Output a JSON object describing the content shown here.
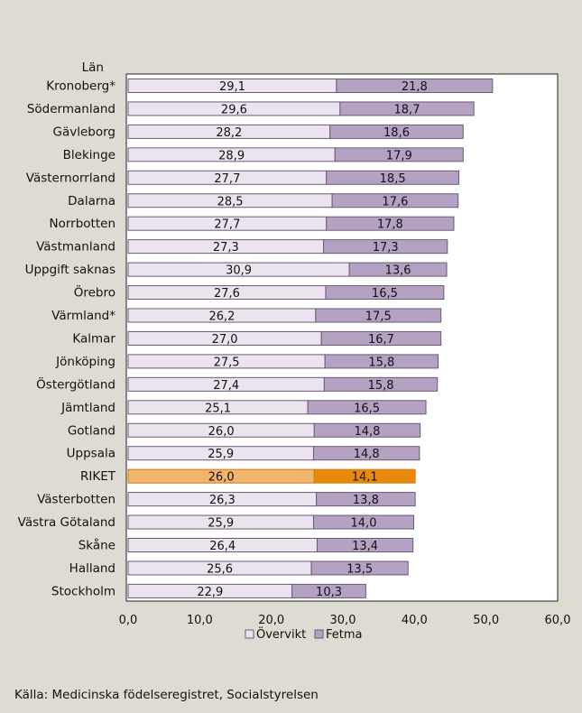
{
  "chart_data": {
    "type": "bar",
    "orientation": "horizontal",
    "stacked": true,
    "y_title": "Län",
    "categories": [
      "Kronoberg*",
      "Södermanland",
      "Gävleborg",
      "Blekinge",
      "Västernorrland",
      "Dalarna",
      "Norrbotten",
      "Västmanland",
      "Uppgift saknas",
      "Örebro",
      "Värmland*",
      "Kalmar",
      "Jönköping",
      "Östergötland",
      "Jämtland",
      "Gotland",
      "Uppsala",
      "RIKET",
      "Västerbotten",
      "Västra Götaland",
      "Skåne",
      "Halland",
      "Stockholm"
    ],
    "series": [
      {
        "name": "Övervikt",
        "color": "#ebe3ee",
        "values": [
          29.1,
          29.6,
          28.2,
          28.9,
          27.7,
          28.5,
          27.7,
          27.3,
          30.9,
          27.6,
          26.2,
          27.0,
          27.5,
          27.4,
          25.1,
          26.0,
          25.9,
          26.0,
          26.3,
          25.9,
          26.4,
          25.6,
          22.9
        ],
        "labels": [
          "29,1",
          "29,6",
          "28,2",
          "28,9",
          "27,7",
          "28,5",
          "27,7",
          "27,3",
          "30,9",
          "27,6",
          "26,2",
          "27,0",
          "27,5",
          "27,4",
          "25,1",
          "26,0",
          "25,9",
          "26,0",
          "26,3",
          "25,9",
          "26,4",
          "25,6",
          "22,9"
        ]
      },
      {
        "name": "Fetma",
        "color": "#b5a2c2",
        "values": [
          21.8,
          18.7,
          18.6,
          17.9,
          18.5,
          17.6,
          17.8,
          17.3,
          13.6,
          16.5,
          17.5,
          16.7,
          15.8,
          15.8,
          16.5,
          14.8,
          14.8,
          14.1,
          13.8,
          14.0,
          13.4,
          13.5,
          10.3
        ],
        "labels": [
          "21,8",
          "18,7",
          "18,6",
          "17,9",
          "18,5",
          "17,6",
          "17,8",
          "17,3",
          "13,6",
          "16,5",
          "17,5",
          "16,7",
          "15,8",
          "15,8",
          "16,5",
          "14,8",
          "14,8",
          "14,1",
          "13,8",
          "14,0",
          "13,4",
          "13,5",
          "10,3"
        ]
      }
    ],
    "highlight": {
      "category": "RIKET",
      "colors": [
        "#f2b56e",
        "#e8890c"
      ]
    },
    "xlim": [
      0,
      60
    ],
    "x_ticks": [
      0,
      10,
      20,
      30,
      40,
      50,
      60
    ],
    "x_tick_labels": [
      "0,0",
      "10,0",
      "20,0",
      "30,0",
      "40,0",
      "50,0",
      "60,0"
    ],
    "grid": false,
    "legend_position": "bottom"
  },
  "source": "Källa: Medicinska födelseregistret, Socialstyrelsen",
  "colors": {
    "background": "#dedbd2",
    "plot": "#ffffff",
    "border": "#6a5a78"
  }
}
